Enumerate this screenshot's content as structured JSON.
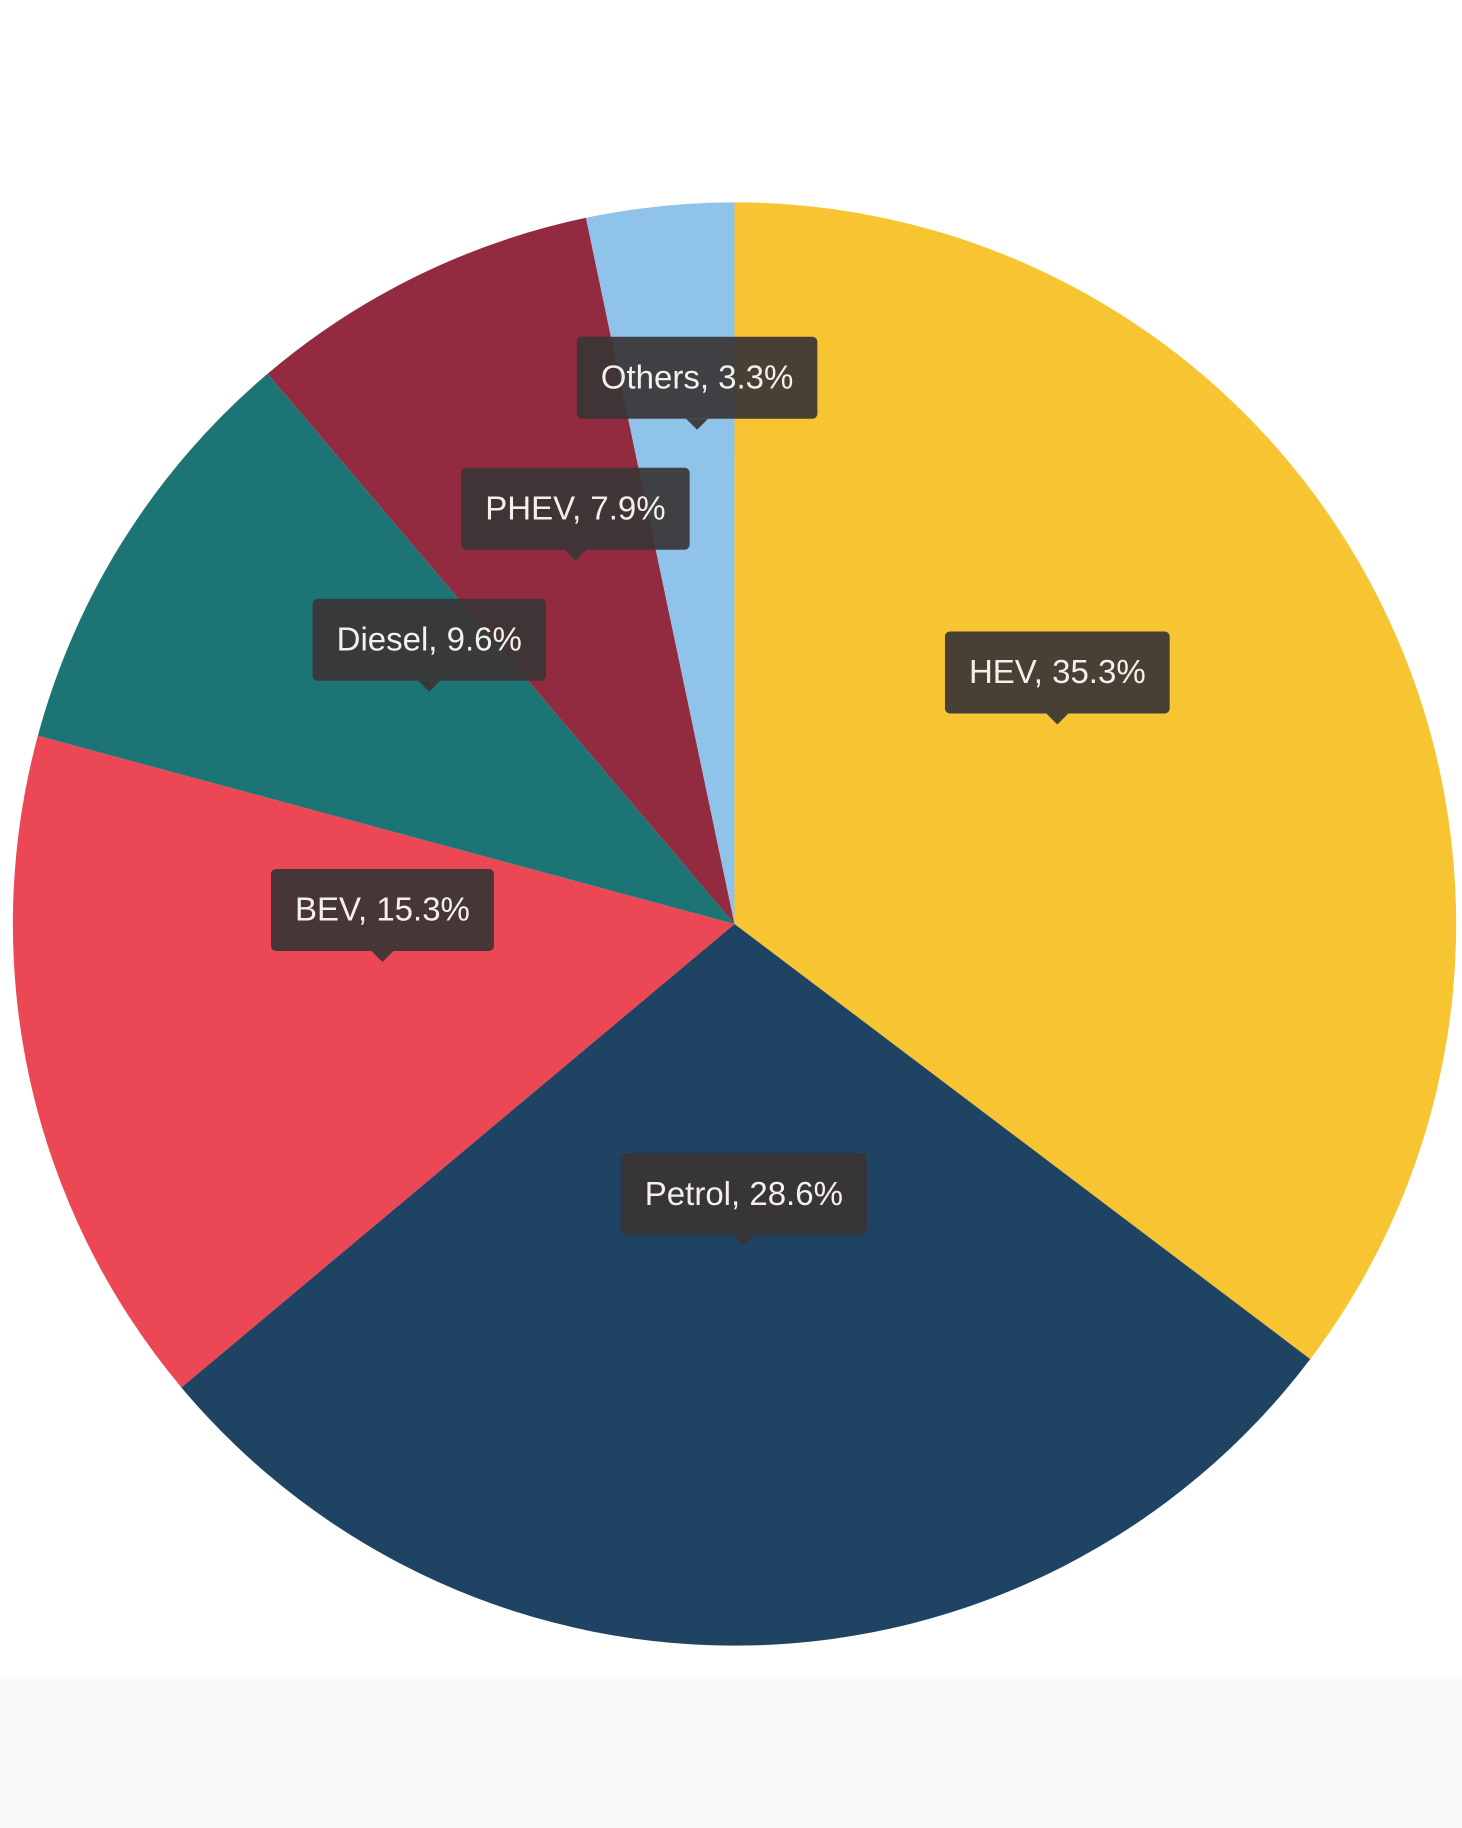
{
  "chart_data": {
    "type": "pie",
    "values": [
      35.3,
      28.6,
      15.3,
      9.6,
      7.9,
      3.3
    ],
    "value_labels": [
      "HEV, 35.3%",
      "Petrol, 28.6%",
      "BEV, 15.3%",
      "Diesel, 9.6%",
      "PHEV, 7.9%",
      "Others, 3.3%"
    ],
    "colors": [
      "#f7c531",
      "#1e4363",
      "#ec4755",
      "#1d7474",
      "#922b3f",
      "#8fc3ea"
    ]
  }
}
